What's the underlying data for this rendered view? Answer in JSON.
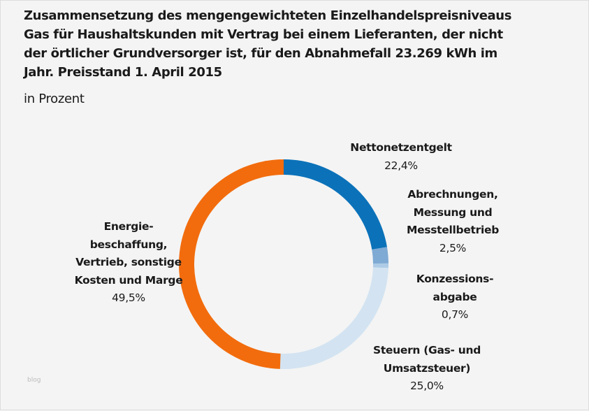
{
  "chart_data": {
    "type": "pie",
    "variant": "donut",
    "title_lines": [
      "Zusammensetzung des mengengewichteten Einzelhandelspreisniveaus",
      "Gas für Haushaltskunden mit Vertrag  bei einem Lieferanten, der nicht",
      "der örtlicher Grundversorger ist, für den Abnahmefall 23.269 kWh im",
      "Jahr. Preisstand 1. April 2015"
    ],
    "subtitle": "in Prozent",
    "slices": [
      {
        "label_lines": [
          "Nettonetzentgelt"
        ],
        "value": 22.4,
        "value_label": "22,4%",
        "color": "#0b72b9"
      },
      {
        "label_lines": [
          "Abrechnungen,",
          "Messung und",
          "Messtellbetrieb"
        ],
        "value": 2.5,
        "value_label": "2,5%",
        "color": "#7eaad4"
      },
      {
        "label_lines": [
          "Konzessions-",
          "abgabe"
        ],
        "value": 0.7,
        "value_label": "0,7%",
        "color": "#aecbe6"
      },
      {
        "label_lines": [
          "Steuern (Gas- und",
          "Umsatzsteuer)"
        ],
        "value": 25.0,
        "value_label": "25,0%",
        "color": "#d3e3f1"
      },
      {
        "label_lines": [
          "Energie-",
          "beschaffung,",
          "Vertrieb, sonstige",
          "Kosten und Marge"
        ],
        "value": 49.5,
        "value_label": "49,5%",
        "color": "#f26c0d"
      }
    ]
  },
  "watermark": "blog"
}
